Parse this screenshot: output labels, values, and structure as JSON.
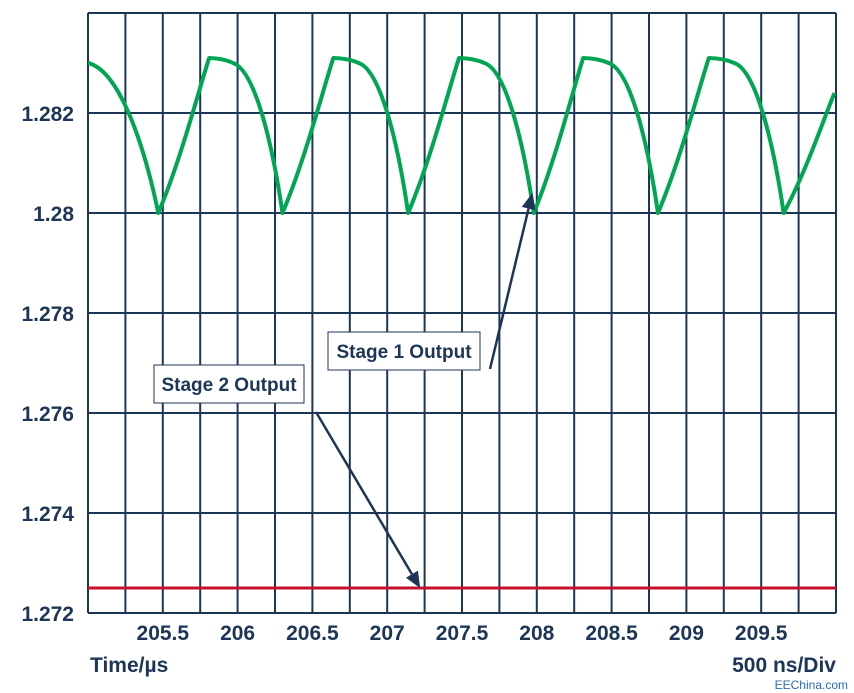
{
  "chart_data": {
    "type": "line",
    "xlabel": "Time/µs",
    "scale_label": "500 ns/Div",
    "xlim": [
      205.0,
      210.0
    ],
    "ylim": [
      1.272,
      1.284
    ],
    "x_ticks": [
      "205.5",
      "206",
      "206.5",
      "207",
      "207.5",
      "208",
      "208.5",
      "209",
      "209.5"
    ],
    "y_ticks": [
      "1.282",
      "1.28",
      "1.278",
      "1.276",
      "1.274",
      "1.272"
    ],
    "y_tick_values": [
      1.282,
      1.28,
      1.278,
      1.276,
      1.274,
      1.272
    ],
    "grid": true,
    "series": [
      {
        "name": "Stage 1 Output",
        "color": "#00a651",
        "x": [
          205.0,
          205.47,
          205.81,
          205.97,
          206.3,
          206.64,
          206.81,
          207.14,
          207.48,
          207.65,
          207.98,
          208.31,
          208.48,
          208.81,
          209.15,
          209.32,
          209.65,
          209.99
        ],
        "y": [
          1.283,
          1.28,
          1.2831,
          1.283,
          1.28,
          1.2831,
          1.283,
          1.28,
          1.2831,
          1.283,
          1.28,
          1.2831,
          1.283,
          1.28,
          1.2831,
          1.283,
          1.28,
          1.2824
        ],
        "shape": "sawtooth"
      },
      {
        "name": "Stage 2 Output",
        "color": "#c8102e",
        "x": [
          205.0,
          210.0
        ],
        "y": [
          1.2725,
          1.2725
        ]
      }
    ],
    "annotations": [
      {
        "text": "Stage 1 Output",
        "arrow_to": {
          "x": 207.97,
          "y": 1.2804
        }
      },
      {
        "text": "Stage 2 Output",
        "arrow_to": {
          "x": 207.22,
          "y": 1.2725
        }
      }
    ]
  },
  "watermark": "EEChina.com",
  "colors": {
    "grid": "#1d3557",
    "text": "#1d3557",
    "stage1": "#00a651",
    "stage2": "#c8102e"
  }
}
